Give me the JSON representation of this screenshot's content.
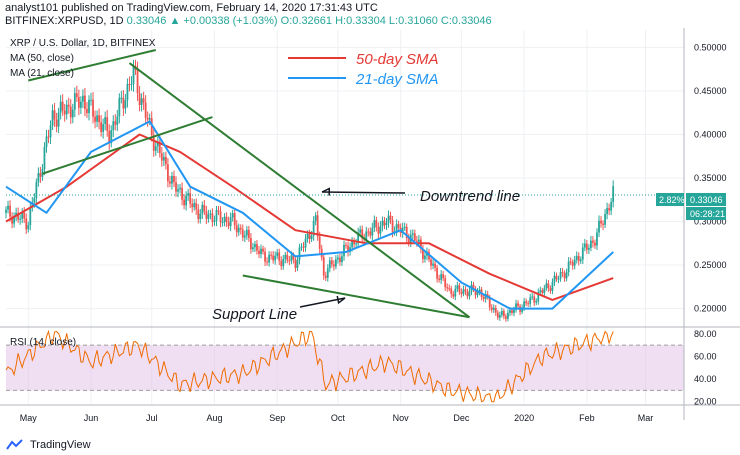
{
  "header": {
    "publisher": "analyst101 published on TradingView.com, February 14, 2020 17:31:43 UTC",
    "symbol": "BITFINEX:XRPUSD, 1D",
    "change": "0.33046 ▲ +0.00338 (+1.03%)",
    "ohlc": "O:0.32661 H:0.33304 L:0.31060 C:0.33046"
  },
  "legend": {
    "title": "XRP / U.S. Dollar, 1D, BITFINEX",
    "ma50": "MA (50, close)",
    "ma21": "MA (21, close)",
    "rsi": "RSI (14, close)"
  },
  "annotations": {
    "sma50": "50-day SMA",
    "sma21": "21-day SMA",
    "downtrend": "Downtrend line",
    "support": "Support Line"
  },
  "price_labels": {
    "pct": "2.82%",
    "last": "0.33046",
    "countdown": "06:28:21"
  },
  "footer": {
    "brand": "TradingView"
  },
  "colors": {
    "up": "#26a69a",
    "down": "#ef5350",
    "sma50": "#e53935",
    "sma21": "#2196f3",
    "trendline": "#2e7d32",
    "rsi_line": "#ef6c00",
    "rsi_band": "#e1bee7"
  },
  "chart_data": [
    {
      "type": "candlestick",
      "title": "XRP / U.S. Dollar, 1D, BITFINEX",
      "x_ticks": [
        "May",
        "Jun",
        "Jul",
        "Aug",
        "Sep",
        "Oct",
        "Nov",
        "Dec",
        "2020",
        "Feb",
        "Mar"
      ],
      "y_ticks": [
        "0.50000",
        "0.45000",
        "0.40000",
        "0.35000",
        "0.30000",
        "0.25000",
        "0.20000"
      ],
      "ylim": [
        0.18,
        0.52
      ],
      "close_path": [
        [
          "2019-04-20",
          0.31
        ],
        [
          "2019-05-01",
          0.3
        ],
        [
          "2019-05-13",
          0.42
        ],
        [
          "2019-05-28",
          0.44
        ],
        [
          "2019-06-10",
          0.4
        ],
        [
          "2019-06-22",
          0.47
        ],
        [
          "2019-07-01",
          0.4
        ],
        [
          "2019-07-12",
          0.34
        ],
        [
          "2019-07-25",
          0.31
        ],
        [
          "2019-08-10",
          0.3
        ],
        [
          "2019-08-25",
          0.26
        ],
        [
          "2019-09-10",
          0.255
        ],
        [
          "2019-09-20",
          0.3
        ],
        [
          "2019-09-24",
          0.24
        ],
        [
          "2019-10-10",
          0.28
        ],
        [
          "2019-10-25",
          0.3
        ],
        [
          "2019-11-08",
          0.28
        ],
        [
          "2019-11-25",
          0.22
        ],
        [
          "2019-12-10",
          0.22
        ],
        [
          "2019-12-20",
          0.19
        ],
        [
          "2020-01-05",
          0.21
        ],
        [
          "2020-01-20",
          0.24
        ],
        [
          "2020-02-05",
          0.28
        ],
        [
          "2020-02-14",
          0.33046
        ]
      ],
      "series": [
        {
          "name": "MA (50, close)",
          "points": [
            [
              "2019-04-20",
              0.3
            ],
            [
              "2019-05-20",
              0.34
            ],
            [
              "2019-06-25",
              0.4
            ],
            [
              "2019-07-15",
              0.38
            ],
            [
              "2019-08-10",
              0.34
            ],
            [
              "2019-09-10",
              0.29
            ],
            [
              "2019-10-15",
              0.275
            ],
            [
              "2019-11-15",
              0.275
            ],
            [
              "2019-12-15",
              0.24
            ],
            [
              "2020-01-15",
              0.21
            ],
            [
              "2020-02-14",
              0.235
            ]
          ]
        },
        {
          "name": "MA (21, close)",
          "points": [
            [
              "2019-04-20",
              0.34
            ],
            [
              "2019-05-10",
              0.31
            ],
            [
              "2019-06-01",
              0.38
            ],
            [
              "2019-06-30",
              0.415
            ],
            [
              "2019-07-20",
              0.34
            ],
            [
              "2019-08-15",
              0.31
            ],
            [
              "2019-09-10",
              0.26
            ],
            [
              "2019-10-05",
              0.265
            ],
            [
              "2019-11-01",
              0.29
            ],
            [
              "2019-12-01",
              0.23
            ],
            [
              "2019-12-25",
              0.2
            ],
            [
              "2020-01-15",
              0.2
            ],
            [
              "2020-02-14",
              0.265
            ]
          ]
        }
      ]
    },
    {
      "type": "line",
      "title": "RSI (14, close)",
      "y_ticks": [
        "80.00",
        "60.00",
        "40.00",
        "20.00"
      ],
      "ylim": [
        18,
        86
      ],
      "bands": [
        30,
        70
      ],
      "points": [
        [
          "2019-04-20",
          45
        ],
        [
          "2019-05-14",
          80
        ],
        [
          "2019-06-01",
          55
        ],
        [
          "2019-06-24",
          70
        ],
        [
          "2019-07-15",
          35
        ],
        [
          "2019-08-15",
          45
        ],
        [
          "2019-09-18",
          80
        ],
        [
          "2019-09-25",
          35
        ],
        [
          "2019-10-25",
          55
        ],
        [
          "2019-11-25",
          30
        ],
        [
          "2019-12-18",
          22
        ],
        [
          "2020-01-10",
          60
        ],
        [
          "2020-02-14",
          80
        ]
      ]
    }
  ]
}
